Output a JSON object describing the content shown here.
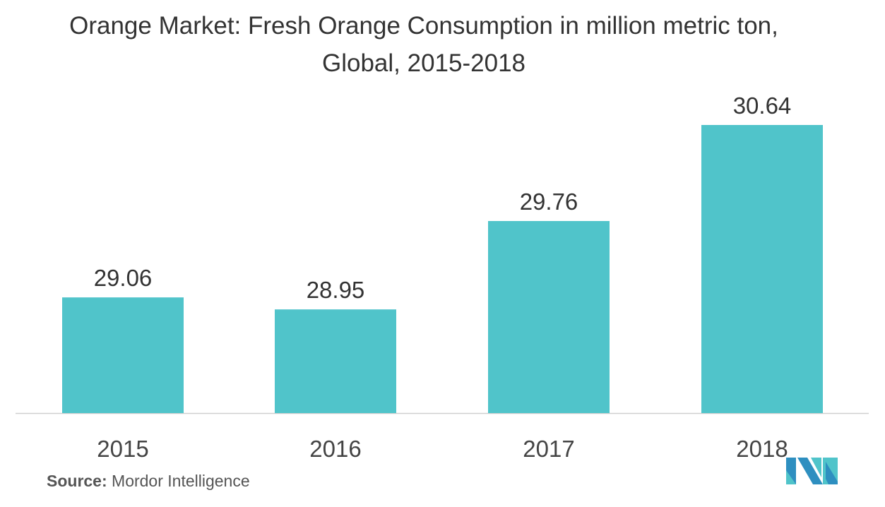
{
  "chart_data": {
    "type": "bar",
    "title": "Orange Market: Fresh Orange Consumption in million metric ton, Global, 2015-2018",
    "categories": [
      "2015",
      "2016",
      "2017",
      "2018"
    ],
    "values": [
      29.06,
      28.95,
      29.76,
      30.64
    ],
    "data_labels": [
      "29.06",
      "28.95",
      "29.76",
      "30.64"
    ],
    "xlabel": "",
    "ylabel": "",
    "ylim": [
      28.0,
      31.3
    ],
    "grid": false,
    "bar_color": "#50C4CA"
  },
  "source": {
    "label": "Source:",
    "text": " Mordor Intelligence"
  },
  "logo": {
    "text": "Mordor Intelligence",
    "colors": [
      "#2E8FC0",
      "#50C4CA"
    ]
  }
}
